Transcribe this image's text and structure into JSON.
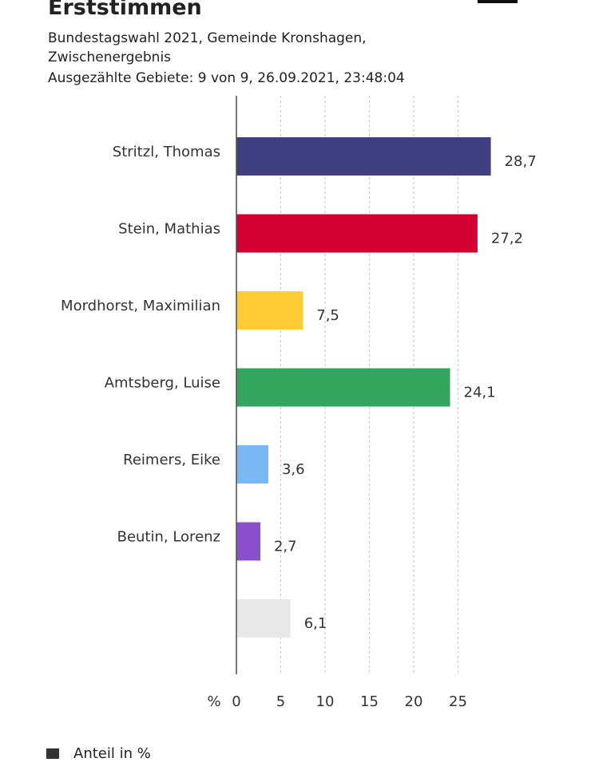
{
  "header": {
    "title": "Erststimmen",
    "subtitle_line1": "Bundestagswahl 2021, Gemeinde Kronshagen,",
    "subtitle_line2": "Zwischenergebnis",
    "subtitle_line3": "Ausgezählte Gebiete: 9 von 9, 26.09.2021, 23:48:04"
  },
  "chart_data": {
    "type": "bar",
    "orientation": "horizontal",
    "categories": [
      "Stritzl, Thomas",
      "Stein, Mathias",
      "Mordhorst, Maximilian",
      "Amtsberg, Luise",
      "Reimers, Eike",
      "Beutin, Lorenz",
      ""
    ],
    "values": [
      28.7,
      27.2,
      7.5,
      24.1,
      3.6,
      2.7,
      6.1
    ],
    "value_labels": [
      "28,7",
      "27,2",
      "7,5",
      "24,1",
      "3,6",
      "2,7",
      "6,1"
    ],
    "colors": [
      "#3f3f82",
      "#d40032",
      "#ffcc33",
      "#34a45f",
      "#7ab8f5",
      "#8b4fcb",
      "#e8e8e8"
    ],
    "x_unit_label": "%",
    "x_ticks": [
      0,
      5,
      10,
      15,
      20,
      25
    ],
    "x_tick_labels": [
      "0",
      "5",
      "10",
      "15",
      "20",
      "25"
    ],
    "xlim": [
      0,
      28.7
    ],
    "grid": true,
    "legend": {
      "label": "Anteil in %",
      "color": "#333333",
      "position": "bottom-left"
    }
  }
}
